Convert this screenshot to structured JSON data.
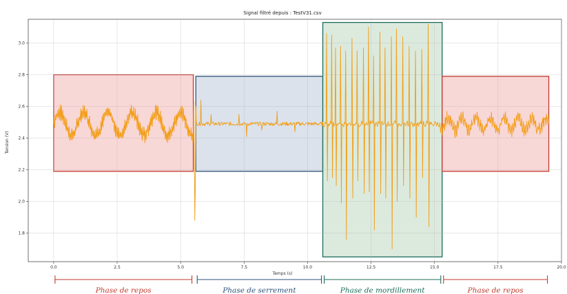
{
  "chart_data": {
    "type": "line",
    "title": "Signal filtré depuis : TestV31.csv",
    "xlabel": "Temps (s)",
    "ylabel": "Tension (V)",
    "xlim": [
      -1,
      20
    ],
    "ylim": [
      1.62,
      3.15
    ],
    "xticks": [
      "0.0",
      "2.5",
      "5.0",
      "7.5",
      "10.0",
      "12.5",
      "15.0",
      "17.5",
      "20.0"
    ],
    "yticks": [
      "1.8",
      "2.0",
      "2.2",
      "2.4",
      "2.6",
      "2.8",
      "3.0"
    ],
    "grid": true,
    "series": [
      {
        "color": "#f39c12",
        "segments": [
          {
            "t": [
              0,
              5.5
            ],
            "mean": 2.49,
            "waves": [
              {
                "amp": 0.07,
                "period": 0.95
              },
              {
                "amp": 0.03,
                "period": 0.05
              }
            ]
          },
          {
            "t": [
              5.5,
              5.62
            ],
            "event": "drop",
            "min": 1.88,
            "max": 2.63
          },
          {
            "t": [
              5.62,
              10.6
            ],
            "mean": 2.49,
            "noise": 0.012,
            "spikes": [
              [
                5.8,
                2.64
              ],
              [
                6.2,
                2.55
              ],
              [
                7.3,
                2.55
              ],
              [
                7.6,
                2.41
              ],
              [
                8.2,
                2.45
              ],
              [
                8.8,
                2.57
              ],
              [
                9.5,
                2.44
              ]
            ]
          },
          {
            "t": [
              10.6,
              15.2
            ],
            "mean": 2.49,
            "bursts": [
              [
                10.75,
                3.06,
                2.13
              ],
              [
                10.95,
                3.05,
                2.15
              ],
              [
                11.1,
                2.97,
                2.1
              ],
              [
                11.3,
                2.98,
                1.99
              ],
              [
                11.5,
                2.95,
                1.76
              ],
              [
                11.75,
                3.03,
                2.02
              ],
              [
                11.95,
                2.95,
                2.13
              ],
              [
                12.2,
                2.97,
                2.05
              ],
              [
                12.4,
                3.1,
                2.06
              ],
              [
                12.6,
                2.92,
                1.82
              ],
              [
                12.85,
                3.07,
                2.05
              ],
              [
                13.05,
                2.97,
                2.02
              ],
              [
                13.3,
                3.04,
                1.7
              ],
              [
                13.5,
                3.09,
                2.0
              ],
              [
                13.75,
                3.04,
                2.1
              ],
              [
                14.0,
                2.98,
                2.02
              ],
              [
                14.25,
                2.95,
                1.9
              ],
              [
                14.5,
                2.96,
                2.15
              ],
              [
                14.75,
                3.12,
                1.84
              ]
            ]
          },
          {
            "t": [
              15.2,
              19.5
            ],
            "mean": 2.49,
            "waves": [
              {
                "amp": 0.04,
                "period": 0.55
              },
              {
                "amp": 0.025,
                "period": 0.07
              }
            ]
          }
        ]
      }
    ],
    "phases": [
      {
        "label": "Phase de repos",
        "t0": 0.0,
        "t1": 5.5,
        "ymin": 2.19,
        "ymax": 2.8,
        "fill": "#f8d7d7",
        "stroke": "#c0392b",
        "text_color": "#c0392b"
      },
      {
        "label": "Phase de serrement",
        "t0": 5.6,
        "t1": 10.6,
        "ymin": 2.19,
        "ymax": 2.79,
        "fill": "#dbe2ec",
        "stroke": "#2c5278",
        "text_color": "#2c5278"
      },
      {
        "label": "Phase de mordillement",
        "t0": 10.6,
        "t1": 15.3,
        "ymin": 1.65,
        "ymax": 3.13,
        "fill": "#dceade",
        "stroke": "#1b6b5a",
        "text_color": "#1b6b5a"
      },
      {
        "label": "Phase de repos",
        "t0": 15.3,
        "t1": 19.5,
        "ymin": 2.19,
        "ymax": 2.79,
        "fill": "#f8d7d7",
        "stroke": "#c0392b",
        "text_color": "#c0392b"
      }
    ]
  }
}
